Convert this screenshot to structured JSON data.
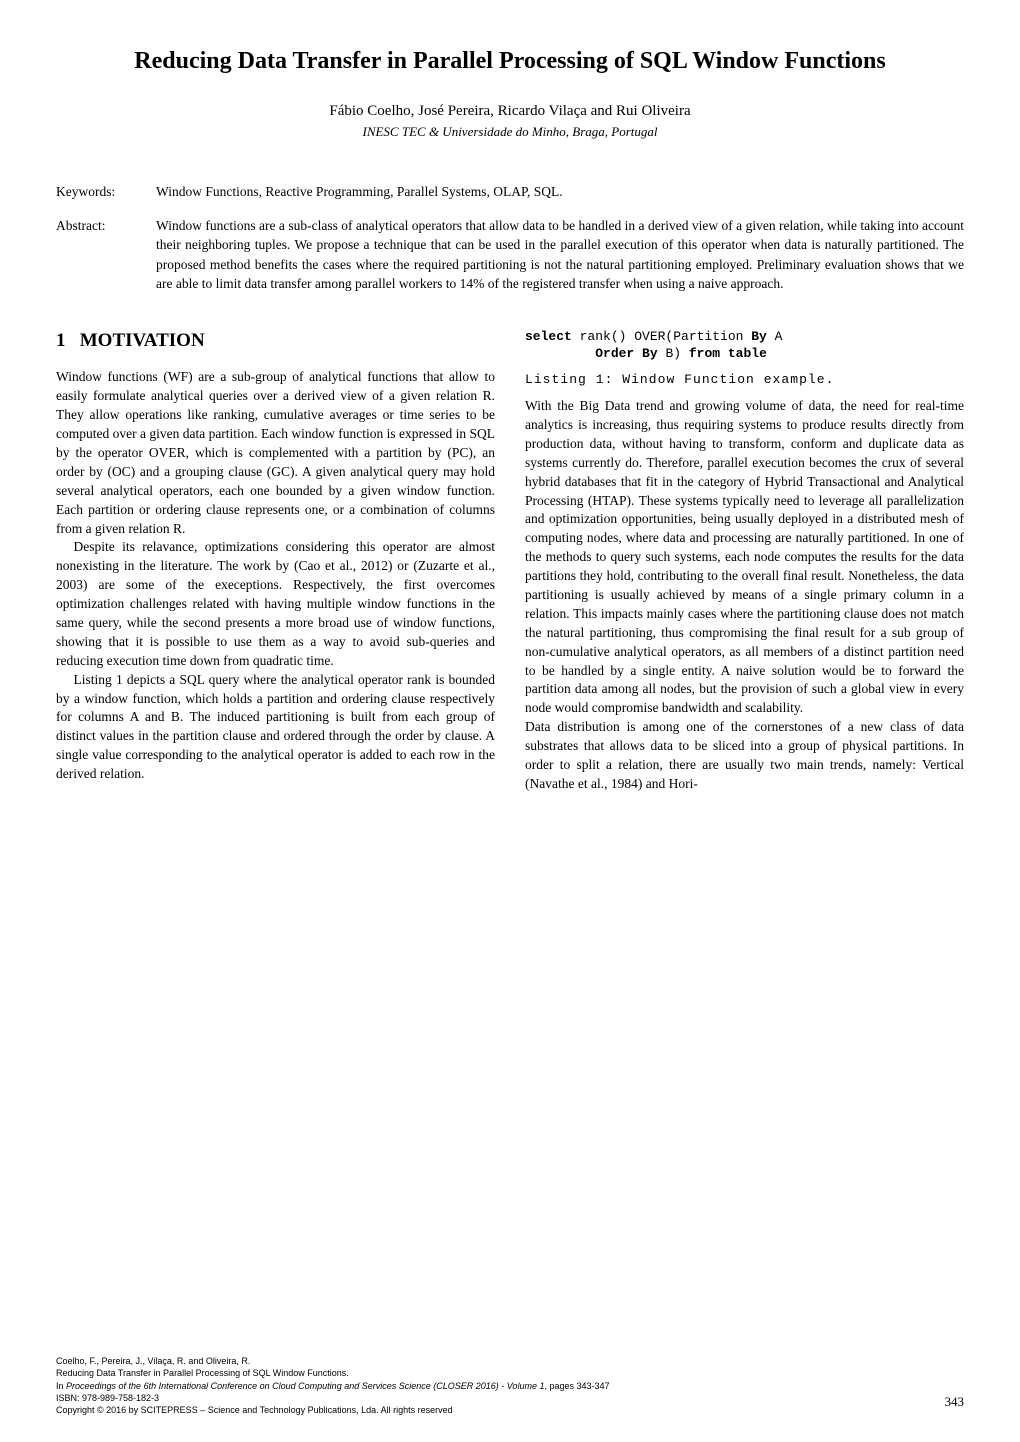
{
  "title": "Reducing Data Transfer in Parallel Processing of SQL Window Functions",
  "authors": "Fábio Coelho, José Pereira, Ricardo Vilaça and Rui Oliveira",
  "affiliation": "INESC TEC & Universidade do Minho, Braga, Portugal",
  "keywords_label": "Keywords:",
  "keywords_text": "Window Functions, Reactive Programming, Parallel Systems, OLAP, SQL.",
  "abstract_label": "Abstract:",
  "abstract_text": "Window functions are a sub-class of analytical operators that allow data to be handled in a derived view of a given relation, while taking into account their neighboring tuples. We propose a technique that can be used in the parallel execution of this operator when data is naturally partitioned. The proposed method benefits the cases where the required partitioning is not the natural partitioning employed. Preliminary evaluation shows that we are able to limit data transfer among parallel workers to 14% of the registered transfer when using a naive approach.",
  "section1_number": "1",
  "section1_title": "MOTIVATION",
  "left_p1": "Window functions (WF) are a sub-group of analytical functions that allow to easily formulate analytical queries over a derived view of a given relation R. They allow operations like ranking, cumulative averages or time series to be computed over a given data partition. Each window function is expressed in SQL by the operator OVER, which is complemented with a partition by (PC), an order by (OC) and a grouping clause (GC). A given analytical query may hold several analytical operators, each one bounded by a given window function. Each partition or ordering clause represents one, or a combination of columns from a given relation R.",
  "left_p2": "Despite its relavance, optimizations considering this operator are almost nonexisting in the literature. The work by (Cao et al., 2012) or  (Zuzarte et al., 2003) are some of the execeptions. Respectively, the first overcomes optimization challenges related with having multiple window functions in the same query, while the second presents a more broad use of window functions, showing that it is possible to use them as a way to avoid sub-queries and reducing execution time down from quadratic time.",
  "left_p3": "Listing 1 depicts a SQL query where the analytical operator rank is bounded by a window function, which holds a partition and ordering clause respectively for columns A and B. The induced partitioning is built from each group of distinct values in the partition clause and ordered through the order by clause. A single value corresponding to the analytical operator is added to each row in the derived relation.",
  "listing_caption": "Listing 1: Window Function example.",
  "right_p1": "With the Big Data trend and growing volume of data, the need for real-time analytics is increasing, thus requiring systems to produce results directly from production data, without having to transform, conform and duplicate data as systems currently do. Therefore, parallel execution becomes the crux of several hybrid databases that fit in the category of Hybrid Transactional and Analytical Processing (HTAP). These systems typically need to leverage all parallelization and optimization opportunities, being usually deployed in a distributed mesh of computing nodes, where data and processing are naturally partitioned. In one of the methods to query such systems, each node computes the results for the data partitions they hold, contributing to the overall final result. Nonetheless, the data partitioning is usually achieved by means of a single primary column in a relation. This impacts mainly cases where the partitioning clause does not match the natural partitioning, thus compromising the final result for a sub group of non-cumulative analytical operators, as all members of a distinct partition need to be handled by a single entity. A naive solution would be to forward the partition data among all nodes, but the provision of such a global view in every node would compromise bandwidth and scalability.",
  "right_p2": "Data distribution is among one of the cornerstones of a new class of data substrates that allows data to be sliced into a group of physical partitions. In order to split a relation, there are usually two main trends, namely: Vertical (Navathe et al., 1984) and Hori-",
  "footer_line1": "Coelho, F., Pereira, J., Vilaça, R. and Oliveira, R.",
  "footer_line2": "Reducing Data Transfer in Parallel Processing of SQL Window Functions.",
  "footer_line3": "In Proceedings of the 6th International Conference on Cloud Computing and Services Science (CLOSER 2016) - Volume 1, pages 343-347",
  "footer_line4": "ISBN: 978-989-758-182-3",
  "footer_line5": "Copyright © 2016 by SCITEPRESS – Science and Technology Publications, Lda. All rights reserved",
  "page_number": "343"
}
